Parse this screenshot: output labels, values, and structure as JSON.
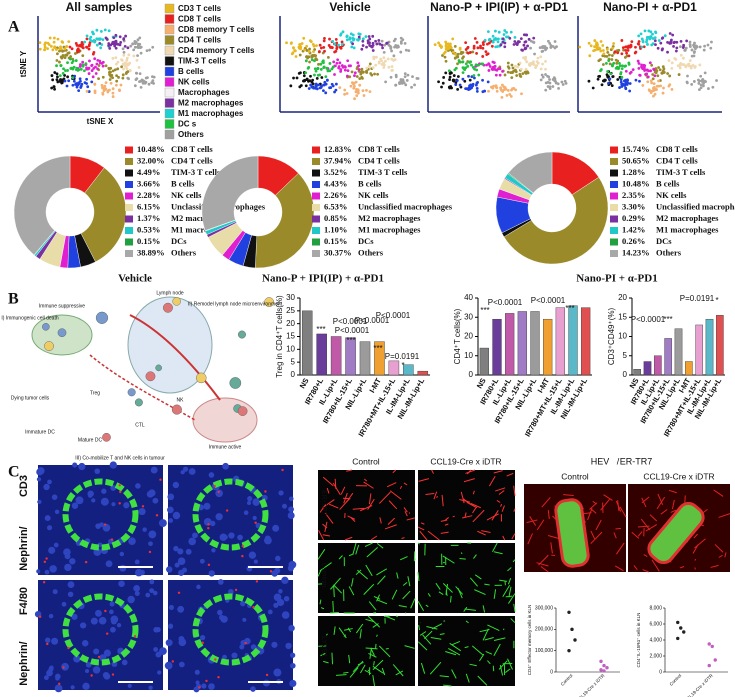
{
  "figure": {
    "panel_labels": [
      "A",
      "B",
      "C"
    ],
    "tsne": {
      "titles": [
        "All samples",
        "Vehicle",
        "Nano-P + IPI(IP) + α-PD1",
        "Nano-PI + α-PD1"
      ],
      "y_label": "tSNE Y",
      "x_label": "tSNE X",
      "legend": [
        {
          "name": "CD3 T cells",
          "color": "#e8b820"
        },
        {
          "name": "CD8 T cells",
          "color": "#e82020"
        },
        {
          "name": "CD8 memory T cells",
          "color": "#f5b070"
        },
        {
          "name": "CD4 T cells",
          "color": "#9a8a2a"
        },
        {
          "name": "CD4 memory T cells",
          "color": "#f0d8b0"
        },
        {
          "name": "TIM-3 T cells",
          "color": "#111111"
        },
        {
          "name": "B cells",
          "color": "#2040e0"
        },
        {
          "name": "NK cells",
          "color": "#e020d0"
        },
        {
          "name": "Macrophages",
          "color": "#f4f0f4"
        },
        {
          "name": "M2 macrophages",
          "color": "#7a30a0"
        },
        {
          "name": "M1 macrophages",
          "color": "#20d0d0"
        },
        {
          "name": "DC s",
          "color": "#20c040"
        },
        {
          "name": "Others",
          "color": "#a0a0a0"
        }
      ]
    },
    "schematic": {
      "labels": [
        "Immune suppressive",
        "Lymph node",
        "I) Immunogenic cell death",
        "II) Remodel lymph node microenvironment",
        "Immature DC",
        "Mature DC",
        "Dying tumor cells",
        "Immune active",
        "III) Co-mobilize T and NK cells in tumour",
        "Treg",
        "CTL",
        "NK"
      ]
    },
    "panel_c": {
      "left_top": [
        "Nephrin",
        "/",
        "CD3"
      ],
      "left_bottom": [
        "Nephrin",
        "/",
        "F4/80"
      ],
      "mid_cols": [
        "Control",
        "CCL19-Cre x iDTR"
      ],
      "mid_rows": [
        "ER-TR7",
        "Laminin",
        "LYVE1"
      ],
      "right_title": [
        "HEV",
        "/",
        "ER-TR7"
      ],
      "right_cols": [
        "Control",
        "CCL19-Cre x iDTR"
      ]
    }
  },
  "chart_data": [
    {
      "type": "pie",
      "title": "Vehicle",
      "categories": [
        "CD8 T cells",
        "CD4 T cells",
        "TIM-3 T cells",
        "B cells",
        "NK cells",
        "Unclassified macrophages",
        "M2 macrophages",
        "M1 macrophages",
        "DCs",
        "Others"
      ],
      "values": [
        10.48,
        32.0,
        4.49,
        3.66,
        2.28,
        6.15,
        1.37,
        0.53,
        0.15,
        38.89
      ],
      "value_labels": [
        "10.48%",
        "32.00%",
        "4.49%",
        "3.66%",
        "2.28%",
        "6.15%",
        "1.37%",
        "0.53%",
        "0.15%",
        "38.89%"
      ],
      "colors": [
        "#e82020",
        "#9a8a2a",
        "#111111",
        "#2040e0",
        "#e020d0",
        "#e8dca8",
        "#7a30a0",
        "#20c8c8",
        "#20a040",
        "#a8a8a8"
      ]
    },
    {
      "type": "pie",
      "title": "Nano-P + IPI(IP) + α-PD1",
      "categories": [
        "CD8 T cells",
        "CD4 T cells",
        "TIM-3 T cells",
        "B cells",
        "NK cells",
        "Unclassified macrophages",
        "M2 macrophages",
        "M1 macrophages",
        "DCs",
        "Others"
      ],
      "values": [
        12.83,
        37.94,
        3.52,
        4.43,
        2.26,
        6.53,
        0.85,
        1.1,
        0.15,
        30.37
      ],
      "value_labels": [
        "12.83%",
        "37.94%",
        "3.52%",
        "4.43%",
        "2.26%",
        "6.53%",
        "0.85%",
        "1.10%",
        "0.15%",
        "30.37%"
      ],
      "colors": [
        "#e82020",
        "#9a8a2a",
        "#111111",
        "#2040e0",
        "#e020d0",
        "#e8dca8",
        "#7a30a0",
        "#20c8c8",
        "#20a040",
        "#a8a8a8"
      ]
    },
    {
      "type": "pie",
      "title": "Nano-PI + α-PD1",
      "categories": [
        "CD8 T cells",
        "CD4 T cells",
        "TIM-3 T cells",
        "B cells",
        "NK cells",
        "Unclassified macrophages",
        "M2 macrophages",
        "M1 macrophages",
        "DCs",
        "Others"
      ],
      "values": [
        15.74,
        50.65,
        1.28,
        10.48,
        2.35,
        3.3,
        0.29,
        1.42,
        0.26,
        14.23
      ],
      "value_labels": [
        "15.74%",
        "50.65%",
        "1.28%",
        "10.48%",
        "2.35%",
        "3.30%",
        "0.29%",
        "1.42%",
        "0.26%",
        "14.23%"
      ],
      "colors": [
        "#e82020",
        "#9a8a2a",
        "#111111",
        "#2040e0",
        "#e020d0",
        "#e8dca8",
        "#7a30a0",
        "#20c8c8",
        "#20a040",
        "#a8a8a8"
      ]
    },
    {
      "type": "bar",
      "ylabel": "Treg in CD4⁺T cells(%)",
      "categories": [
        "NS",
        "IR780+L",
        "IL-Lip+L",
        "IR780+IL-15+L",
        "NIL-Lip+L",
        "I-MT",
        "IR780+MT+IL-15+L",
        "IL-IM-Lip+L",
        "NIL-IM-Lip+L"
      ],
      "values": [
        25,
        16,
        15,
        14.5,
        13,
        13,
        5.5,
        4,
        1.5
      ],
      "colors": [
        "#7f7f7f",
        "#6a3d9a",
        "#c05aa8",
        "#a07cc5",
        "#9b9b9b",
        "#f0a030",
        "#e8a0d0",
        "#5ab8c8",
        "#e05050"
      ],
      "ylim": [
        0,
        30
      ],
      "yticks": [
        0,
        5,
        10,
        15,
        20,
        25,
        30
      ],
      "annotations": [
        "P<0.0001",
        "P<0.0001",
        "P<0.0001",
        "P<0.0001",
        "P=0.0191",
        "***",
        "***",
        "***",
        "*"
      ]
    },
    {
      "type": "bar",
      "ylabel": "CD4⁺T cells(%)",
      "categories": [
        "NS",
        "IR780+L",
        "IL-Lip+L",
        "IR780+IL-15+L",
        "NIL-Lip+L",
        "I-MT",
        "IR780+MT+IL-15+L",
        "IL-IM-Lip+L",
        "NIL-IM-Lip+L"
      ],
      "values": [
        14,
        29,
        32,
        33,
        33,
        29,
        35,
        36,
        35
      ],
      "colors": [
        "#7f7f7f",
        "#6a3d9a",
        "#c05aa8",
        "#a07cc5",
        "#9b9b9b",
        "#f0a030",
        "#e8a0d0",
        "#5ab8c8",
        "#e05050"
      ],
      "ylim": [
        0,
        40
      ],
      "yticks": [
        0,
        10,
        20,
        30,
        40
      ],
      "annotations": [
        "P<0.0001",
        "P<0.0001",
        "***",
        "***"
      ]
    },
    {
      "type": "bar",
      "ylabel": "CD3⁺CD49⁺(%)",
      "categories": [
        "NS",
        "IR780+L",
        "IL-Lip+L",
        "IR780+IL-15+L",
        "NIL-Lip+L",
        "I-MT",
        "IR780+MT+IL-15+L",
        "IL-IM-Lip+L",
        "NIL-IM-Lip+L"
      ],
      "values": [
        1.5,
        3.5,
        5,
        9.5,
        12,
        3.5,
        13,
        14.5,
        15.5
      ],
      "colors": [
        "#7f7f7f",
        "#6a3d9a",
        "#c05aa8",
        "#a07cc5",
        "#9b9b9b",
        "#f0a030",
        "#e8a0d0",
        "#5ab8c8",
        "#e05050"
      ],
      "ylim": [
        0,
        20
      ],
      "yticks": [
        0,
        5,
        10,
        15,
        20
      ],
      "annotations": [
        "P<0.0001",
        "***",
        "P=0.0191",
        "*"
      ]
    },
    {
      "type": "dot",
      "ylabel": "CD4⁺ Effector memory cells in KLN",
      "series": [
        {
          "name": "Control",
          "values": [
            280000,
            200000,
            150000,
            100000
          ]
        },
        {
          "name": "CCL19-Cre x iDTR",
          "values": [
            50000,
            30000,
            20000,
            10000,
            5000
          ]
        }
      ],
      "ylim": [
        0,
        300000
      ],
      "yticks": [
        0,
        {
          "value": 100000,
          "label": "100,000"
        },
        {
          "value": 200000,
          "label": "200,000"
        },
        {
          "value": 300000,
          "label": "300,000"
        }
      ]
    },
    {
      "type": "dot",
      "ylabel": "CD4⁺IL-15Rα⁺ cells in KLN",
      "series": [
        {
          "name": "Control",
          "values": [
            6200,
            5500,
            5000,
            4200
          ]
        },
        {
          "name": "CCL19-Cre x iDTR",
          "values": [
            3500,
            3200,
            1500,
            800
          ]
        }
      ],
      "ylim": [
        0,
        8000
      ],
      "yticks": [
        0,
        {
          "value": 2000,
          "label": "2,000"
        },
        {
          "value": 4000,
          "label": "4,000"
        },
        {
          "value": 6000,
          "label": "6,000"
        },
        {
          "value": 8000,
          "label": "8,000"
        }
      ]
    }
  ]
}
